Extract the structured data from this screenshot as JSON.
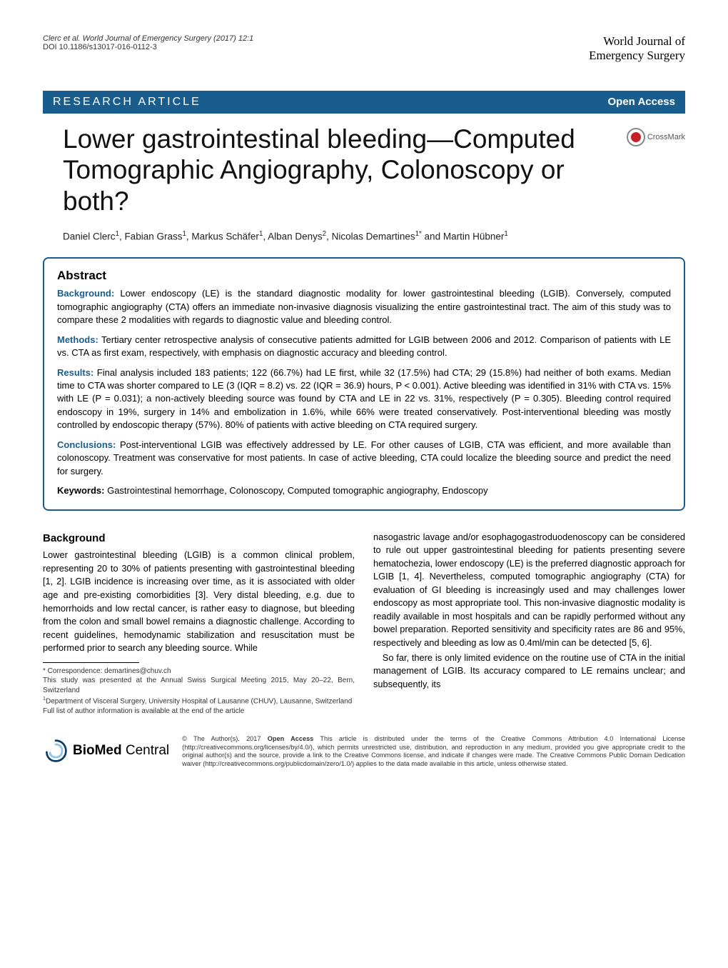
{
  "header": {
    "citation": "Clerc et al. World Journal of Emergency Surgery  (2017) 12:1",
    "doi": "DOI 10.1186/s13017-016-0112-3",
    "journal_line1": "World Journal of",
    "journal_line2": "Emergency Surgery"
  },
  "banner": {
    "left": "RESEARCH ARTICLE",
    "right": "Open Access",
    "bg_color": "#195d8e"
  },
  "crossmark": {
    "label": "CrossMark"
  },
  "title": "Lower gastrointestinal bleeding—Computed Tomographic Angiography, Colonoscopy or both?",
  "authors_html": "Daniel Clerc<sup>1</sup>, Fabian Grass<sup>1</sup>, Markus Schäfer<sup>1</sup>, Alban Denys<sup>2</sup>, Nicolas Demartines<sup>1*</sup> and Martin Hübner<sup>1</sup>",
  "abstract": {
    "heading": "Abstract",
    "background_label": "Background:",
    "background_text": " Lower endoscopy (LE) is the standard diagnostic modality for lower gastrointestinal bleeding (LGIB). Conversely, computed tomographic angiography (CTA) offers an immediate non-invasive diagnosis visualizing the entire gastrointestinal tract. The aim of this study was to compare these 2 modalities with regards to diagnostic value and bleeding control.",
    "methods_label": "Methods:",
    "methods_text": " Tertiary center retrospective analysis of consecutive patients admitted for LGIB between 2006 and 2012. Comparison of patients with LE vs. CTA as first exam, respectively, with emphasis on diagnostic accuracy and bleeding control.",
    "results_label": "Results:",
    "results_text": " Final analysis included 183 patients; 122 (66.7%) had LE first, while 32 (17.5%) had CTA; 29 (15.8%) had neither of both exams. Median time to CTA was shorter compared to LE (3 (IQR = 8.2) vs. 22 (IQR = 36.9) hours, P < 0.001). Active bleeding was identified in 31% with CTA vs. 15% with LE (P = 0.031); a non-actively bleeding source was found by CTA and LE in 22 vs. 31%, respectively (P = 0.305). Bleeding control required endoscopy in 19%, surgery in 14% and embolization in 1.6%, while 66% were treated conservatively. Post-interventional bleeding was mostly controlled by endoscopic therapy (57%). 80% of patients with active bleeding on CTA required surgery.",
    "conclusions_label": "Conclusions:",
    "conclusions_text": " Post-interventional LGIB was effectively addressed by LE. For other causes of LGIB, CTA was efficient, and more available than colonoscopy. Treatment was conservative for most patients. In case of active bleeding, CTA could localize the bleeding source and predict the need for surgery.",
    "keywords_label": "Keywords:",
    "keywords_text": " Gastrointestinal hemorrhage, Colonoscopy, Computed tomographic angiography, Endoscopy"
  },
  "body": {
    "background_heading": "Background",
    "col1": "Lower gastrointestinal bleeding (LGIB) is a common clinical problem, representing 20 to 30% of patients presenting with gastrointestinal bleeding [1, 2]. LGIB incidence is increasing over time, as it is associated with older age and pre-existing comorbidities [3]. Very distal bleeding, e.g. due to hemorrhoids and low rectal cancer, is rather easy to diagnose, but bleeding from the colon and small bowel remains a diagnostic challenge. According to recent guidelines, hemodynamic stabilization and resuscitation must be performed prior to search any bleeding source. While",
    "col2_p1": "nasogastric lavage and/or esophagogastroduodenoscopy can be considered to rule out upper gastrointestinal bleeding for patients presenting severe hematochezia, lower endoscopy (LE) is the preferred diagnostic approach for LGIB [1, 4]. Nevertheless, computed tomographic angiography (CTA) for evaluation of GI bleeding is increasingly used and may challenges lower endoscopy as most appropriate tool. This non-invasive diagnostic modality is readily available in most hospitals and can be rapidly performed without any bowel preparation. Reported sensitivity and specificity rates are 86 and 95%, respectively and bleeding as low as 0.4ml/min can be detected [5, 6].",
    "col2_p2": "So far, there is only limited evidence on the routine use of CTA in the initial management of LGIB. Its accuracy compared to LE remains unclear; and subsequently, its"
  },
  "footnotes": {
    "correspondence": "* Correspondence: demartines@chuv.ch",
    "presented": "This study was presented at the Annual Swiss Surgical Meeting 2015, May 20–22, Bern, Switzerland",
    "dept_html": "<sup>1</sup>Department of Visceral Surgery, University Hospital of Lausanne (CHUV), Lausanne, Switzerland",
    "author_list": "Full list of author information is available at the end of the article"
  },
  "footer": {
    "bmc_bio": "BioMed",
    "bmc_central": " Central",
    "license_html": "© The Author(s). 2017 <b>Open Access</b> This article is distributed under the terms of the Creative Commons Attribution 4.0 International License (http://creativecommons.org/licenses/by/4.0/), which permits unrestricted use, distribution, and reproduction in any medium, provided you give appropriate credit to the original author(s) and the source, provide a link to the Creative Commons license, and indicate if changes were made. The Creative Commons Public Domain Dedication waiver (http://creativecommons.org/publicdomain/zero/1.0/) applies to the data made available in this article, unless otherwise stated."
  }
}
